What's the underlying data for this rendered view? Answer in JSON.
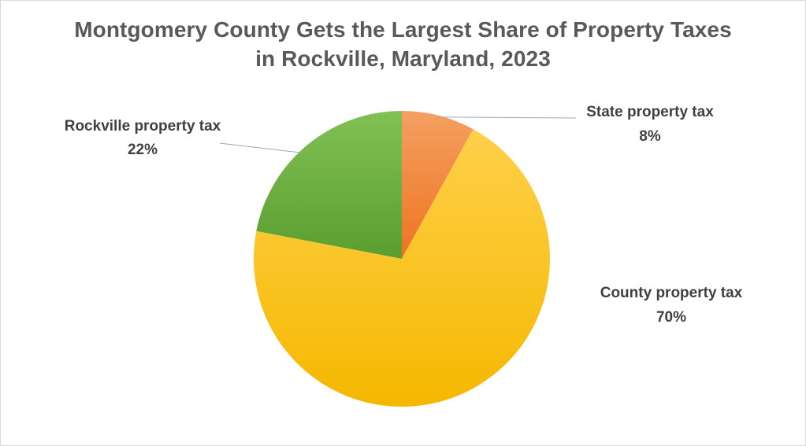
{
  "chart_data": {
    "type": "pie",
    "title_lines": [
      "Montgomery County Gets the Largest Share of Property Taxes",
      "in Rockville, Maryland, 2023"
    ],
    "slices": [
      {
        "name": "State property tax",
        "value": 8,
        "value_label": "8%",
        "color_light": "#f4a062",
        "color_dark": "#ee7320"
      },
      {
        "name": "County property tax",
        "value": 70,
        "value_label": "70%",
        "color_light": "#ffd04a",
        "color_dark": "#f5b800"
      },
      {
        "name": "Rockville property tax",
        "value": 22,
        "value_label": "22%",
        "color_light": "#82c056",
        "color_dark": "#5a9e2f"
      }
    ],
    "start_angle": "12 o'clock",
    "direction": "clockwise",
    "legend": "none",
    "labels": "outside with leader lines"
  }
}
